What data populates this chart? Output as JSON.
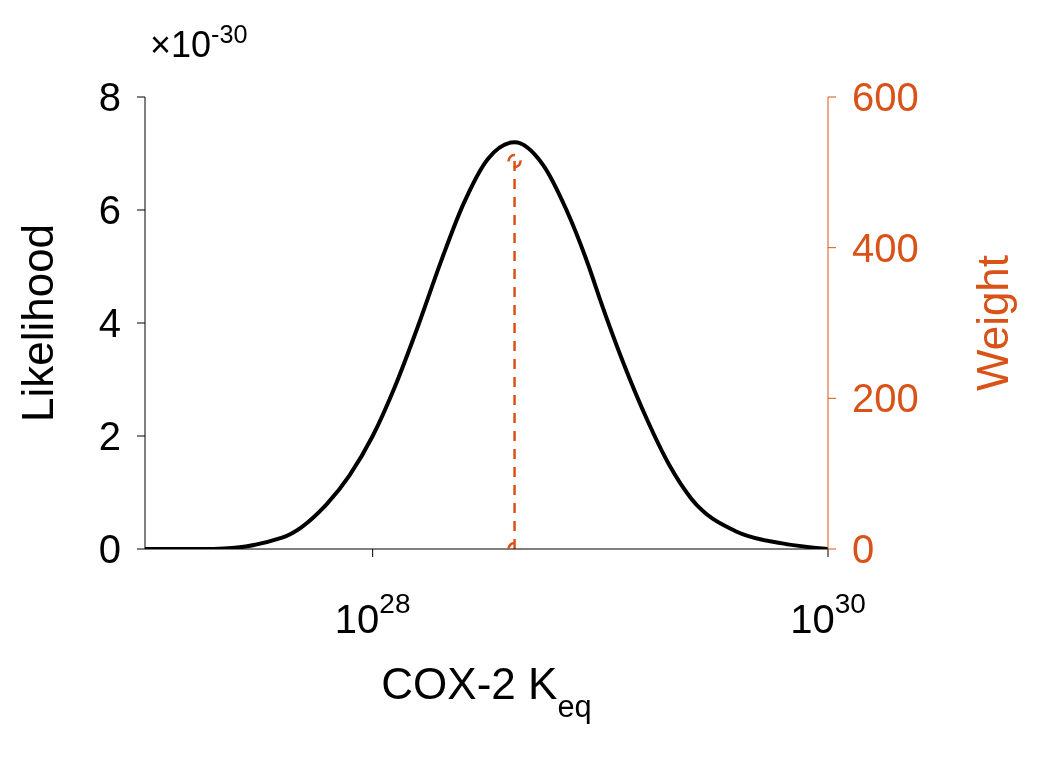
{
  "chart_data": {
    "type": "line",
    "xlabel": "COX-2 K$_{eq}$",
    "ylabel": "Likelihood",
    "y2label": "Weight",
    "log": "x",
    "xlim": [
      1e+27,
      1e+30
    ],
    "xticks": [
      {
        "value": 1e+28,
        "label": "10$^{28}$"
      },
      {
        "value": 1e+30,
        "label": "10$^{30}$"
      }
    ],
    "ylim": [
      0,
      8
    ],
    "yticks": [
      0,
      2,
      4,
      6,
      8
    ],
    "y2lim": [
      0,
      600
    ],
    "y2ticks": [
      0,
      200,
      400,
      600
    ],
    "annotations": [
      "×10$^{-30}$"
    ],
    "grid": false,
    "legend": false,
    "series": [
      {
        "color": "#000000",
        "marker": "none",
        "line_style": "solid",
        "x": [
          1e+27,
          2e+27,
          4e+27,
          6.3e+27,
          7.9e+27,
          1e+28,
          1.26e+28,
          1.6e+28,
          2e+28,
          2.5e+28,
          3.2e+28,
          4.2e+28,
          5.6e+28,
          7.1e+28,
          8.9e+28,
          1e+29,
          1.26e+29,
          1.6e+29,
          2e+29,
          2.5e+29,
          4e+29,
          6.3e+29,
          1e+30
        ],
        "values": [
          0,
          0,
          0.2,
          0.8,
          1.3,
          2,
          2.9,
          4,
          5.1,
          6.1,
          6.9,
          7.2,
          6.8,
          6,
          5,
          4.4,
          3.3,
          2.3,
          1.5,
          0.9,
          0.3,
          0.1,
          0
        ]
      },
      {
        "color": "#d95319",
        "axis": "y2",
        "marker": "circle",
        "line_style": "dashed",
        "x": [
          4.2e+28,
          4.2e+28
        ],
        "values": [
          0,
          515
        ]
      }
    ]
  }
}
